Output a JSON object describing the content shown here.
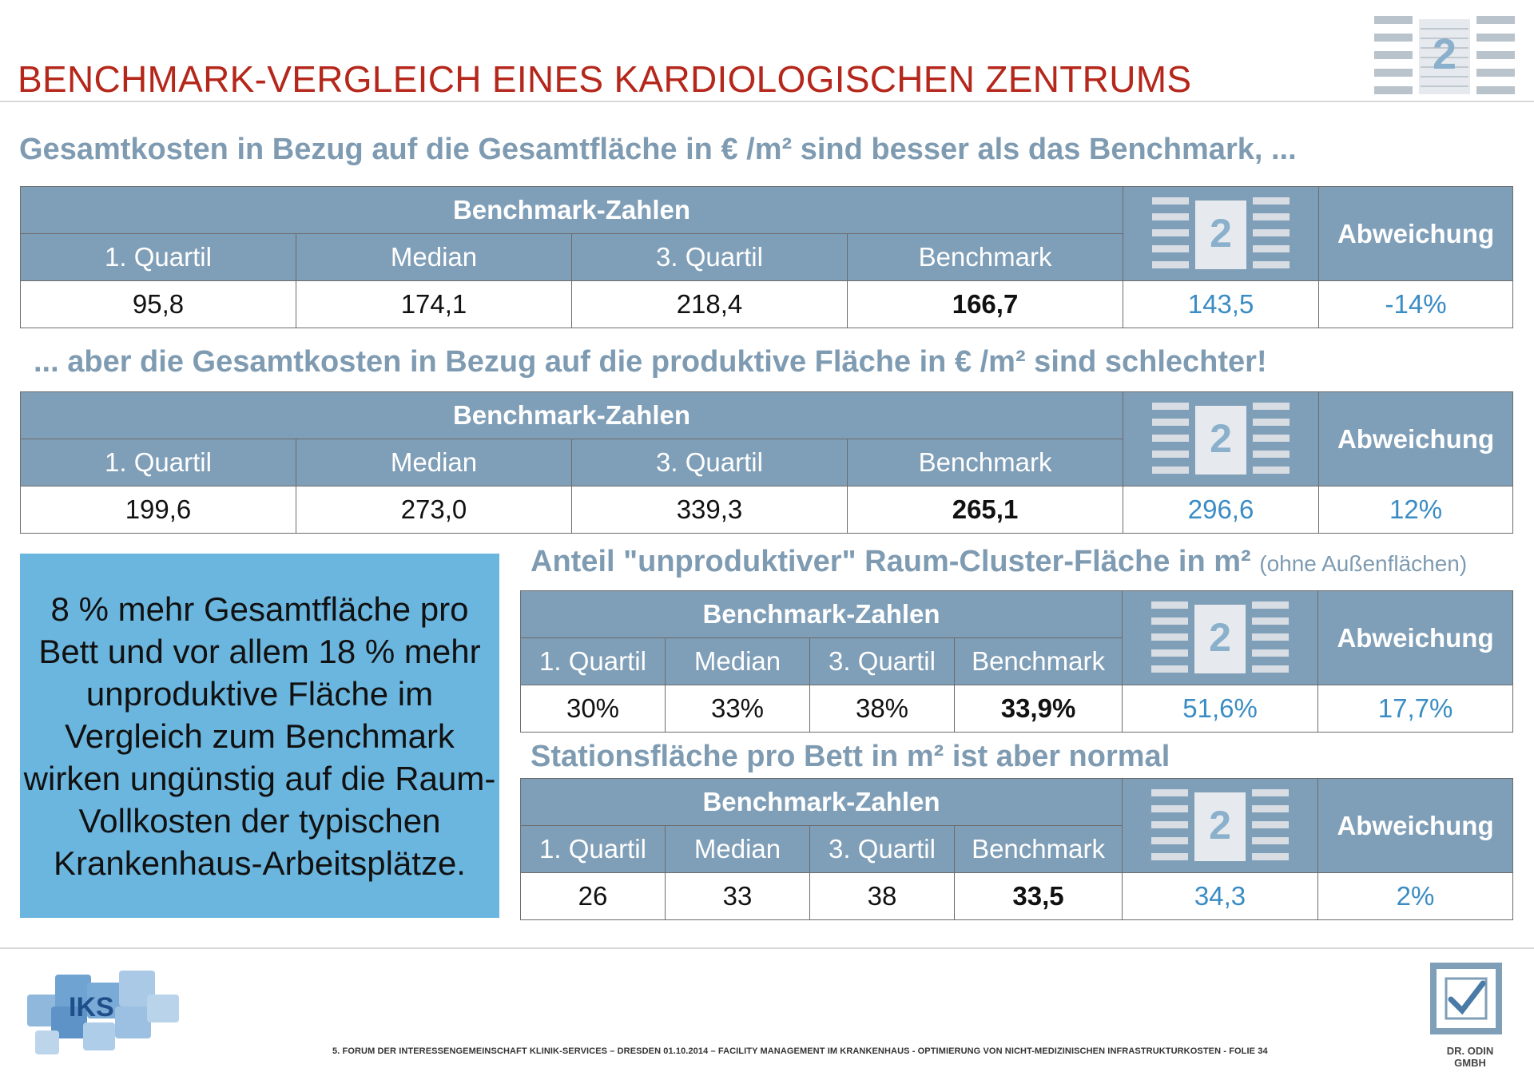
{
  "slide": {
    "title": "BENCHMARK-VERGLEICH EINES KARDIOLOGISCHEN ZENTRUMS"
  },
  "sections": [
    {
      "subtitle": "Gesamtkosten in Bezug auf die Gesamtfläche in € /m² sind besser als das Benchmark, ...",
      "header_group": "Benchmark-Zahlen",
      "columns": [
        "1. Quartil",
        "Median",
        "3. Quartil",
        "Benchmark"
      ],
      "deviation_header": "Abweichung",
      "values": [
        "95,8",
        "174,1",
        "218,4",
        "166,7"
      ],
      "own_value": "143,5",
      "deviation": "-14%"
    },
    {
      "subtitle": "... aber die Gesamtkosten in Bezug auf die produktive Fläche in € /m² sind schlechter!",
      "header_group": "Benchmark-Zahlen",
      "columns": [
        "1. Quartil",
        "Median",
        "3. Quartil",
        "Benchmark"
      ],
      "deviation_header": "Abweichung",
      "values": [
        "199,6",
        "273,0",
        "339,3",
        "265,1"
      ],
      "own_value": "296,6",
      "deviation": "12%"
    },
    {
      "subtitle": "Anteil \"unproduktiver\" Raum-Cluster-Fläche in m²",
      "subtitle_note": "(ohne Außenflächen)",
      "header_group": "Benchmark-Zahlen",
      "columns": [
        "1. Quartil",
        "Median",
        "3. Quartil",
        "Benchmark"
      ],
      "deviation_header": "Abweichung",
      "values": [
        "30%",
        "33%",
        "38%",
        "33,9%"
      ],
      "own_value": "51,6%",
      "deviation": "17,7%"
    },
    {
      "subtitle": "Stationsfläche pro Bett in m² ist aber normal",
      "header_group": "Benchmark-Zahlen",
      "columns": [
        "1. Quartil",
        "Median",
        "3. Quartil",
        "Benchmark"
      ],
      "deviation_header": "Abweichung",
      "values": [
        "26",
        "33",
        "38",
        "33,5"
      ],
      "own_value": "34,3",
      "deviation": "2%"
    }
  ],
  "callout": {
    "text": "8 % mehr Gesamtfläche pro Bett und vor allem 18 % mehr unproduktive Fläche im Vergleich zum Benchmark wirken ungünstig auf die Raum-Vollkosten der typischen Krankenhaus-Arbeitsplätze."
  },
  "footer": {
    "text": "5. FORUM DER INTERESSENGEMEINSCHAFT KLINIK-SERVICES – DRESDEN 01.10.2014 – FACILITY MANAGEMENT IM KRANKENHAUS  - OPTIMIERUNG VON NICHT-MEDIZINISCHEN INFRASTRUKTURKOSTEN - FOLIE 34",
    "left_logo_text": "IKS",
    "right_logo_text": "DR. ODIN GMBH"
  },
  "diagram": {
    "number": "2"
  },
  "colors": {
    "title": "#b5271b",
    "subtitle": "#7e9bb2",
    "header_bg": "#7f9eb7",
    "highlight_value": "#3a8cc4",
    "callout_bg": "#6bb6df"
  }
}
